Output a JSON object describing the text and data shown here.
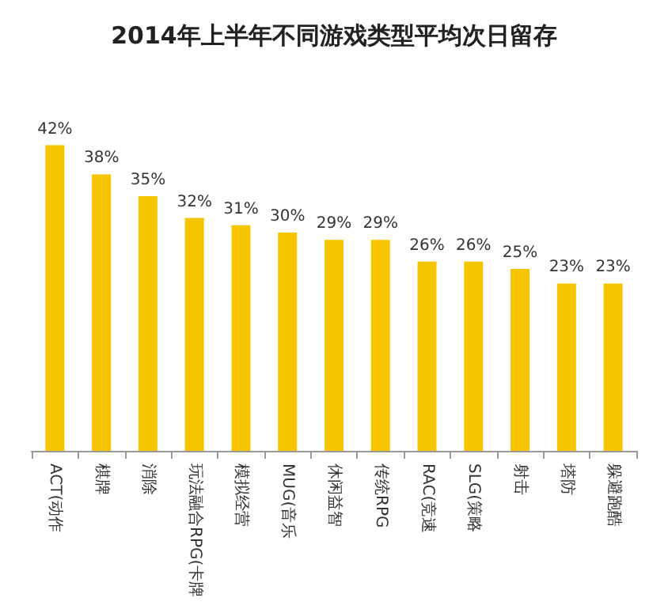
{
  "chart_data": {
    "type": "bar",
    "title": "2014年上半年不同游戏类型平均次日留存",
    "categories": [
      "ACT(动作",
      "棋牌",
      "消除",
      "玩法融合RPG(卡牌",
      "模拟经营",
      "MUG(音乐",
      "休闲益智",
      "传统RPG",
      "RAC(竞速",
      "SLG(策略",
      "射击",
      "塔防",
      "躲避跑酷"
    ],
    "values": [
      42,
      38,
      35,
      32,
      31,
      30,
      29,
      29,
      26,
      26,
      25,
      23,
      23
    ],
    "value_labels": [
      "42%",
      "38%",
      "35%",
      "32%",
      "31%",
      "30%",
      "29%",
      "29%",
      "26%",
      "26%",
      "25%",
      "23%",
      "23%"
    ],
    "color": "#f7c500"
  }
}
